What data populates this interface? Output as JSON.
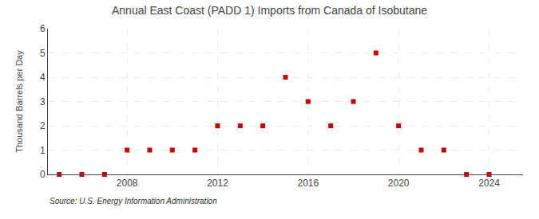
{
  "chart_data": {
    "type": "scatter",
    "title": "Annual East Coast (PADD 1) Imports from Canada of Isobutane",
    "ylabel": "Thousand Barrels per Day",
    "annotations": [
      "Source: U.S. Energy Information Administration"
    ],
    "x": [
      2005,
      2006,
      2007,
      2008,
      2009,
      2010,
      2011,
      2012,
      2013,
      2014,
      2015,
      2016,
      2017,
      2018,
      2019,
      2020,
      2021,
      2022,
      2023,
      2024
    ],
    "values": [
      0,
      0,
      0,
      1,
      1,
      1,
      1,
      2,
      2,
      2,
      4,
      3,
      2,
      3,
      5,
      2,
      1,
      1,
      0,
      0
    ],
    "color": "#cc0000",
    "marker": "square",
    "xlim": [
      2004.5,
      2025.5
    ],
    "xticks": [
      2008,
      2012,
      2016,
      2020,
      2024
    ],
    "ylim": [
      0,
      6
    ],
    "yticks": [
      0,
      1,
      2,
      3,
      4,
      5,
      6
    ],
    "grid": true
  }
}
